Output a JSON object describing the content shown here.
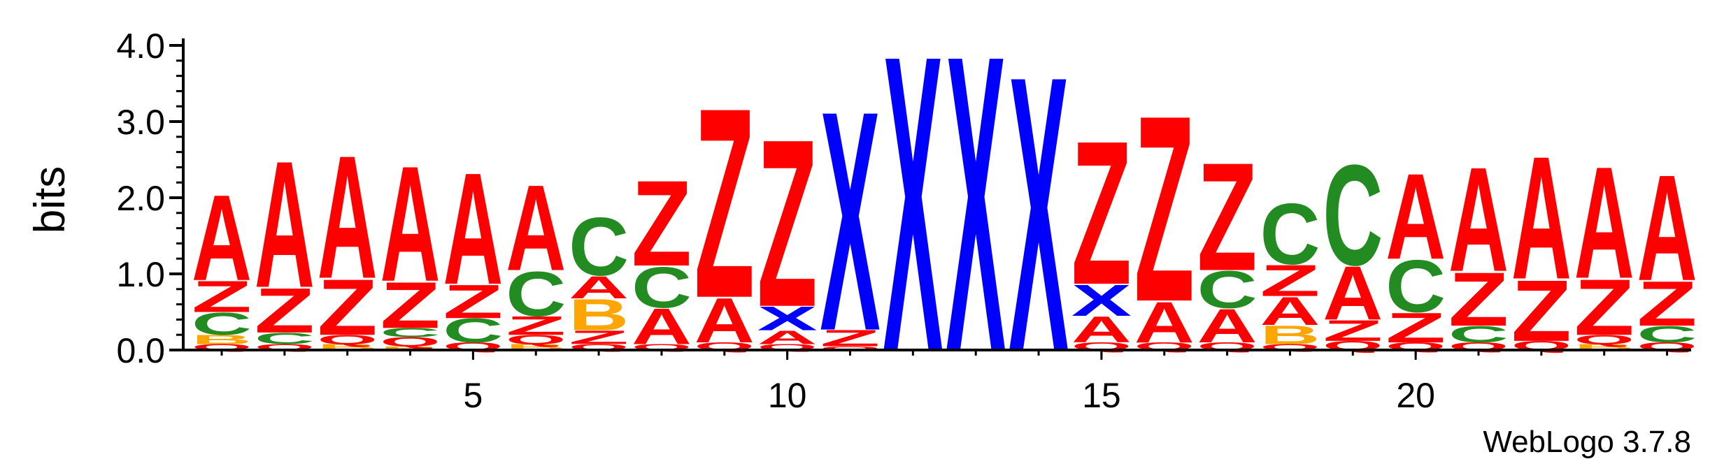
{
  "chart_data": {
    "type": "sequence-logo",
    "ylabel": "bits",
    "ylim": [
      0,
      4.0
    ],
    "yticks": [
      {
        "value": 0.0,
        "label": "0.0"
      },
      {
        "value": 1.0,
        "label": "1.0"
      },
      {
        "value": 2.0,
        "label": "2.0"
      },
      {
        "value": 3.0,
        "label": "3.0"
      },
      {
        "value": 4.0,
        "label": "4.0"
      }
    ],
    "x_tick_labels": [
      {
        "position": 5,
        "label": "5"
      },
      {
        "position": 10,
        "label": "10"
      },
      {
        "position": 15,
        "label": "15"
      },
      {
        "position": 20,
        "label": "20"
      }
    ],
    "positions": 24,
    "colors": {
      "A": "#ff0000",
      "Z": "#ff0000",
      "Q": "#ff0000",
      "C": "#228b22",
      "B": "#ffa500",
      "X": "#0000ff"
    },
    "stacks": [
      {
        "position": 1,
        "letters": [
          [
            "Q",
            0.08
          ],
          [
            "B",
            0.12
          ],
          [
            "C",
            0.3
          ],
          [
            "Z",
            0.42
          ],
          [
            "A",
            1.15
          ]
        ]
      },
      {
        "position": 2,
        "letters": [
          [
            "Q",
            0.08
          ],
          [
            "C",
            0.15
          ],
          [
            "Z",
            0.6
          ],
          [
            "A",
            1.7
          ]
        ]
      },
      {
        "position": 3,
        "letters": [
          [
            "B",
            0.08
          ],
          [
            "Q",
            0.12
          ],
          [
            "Z",
            0.75
          ],
          [
            "A",
            1.65
          ]
        ]
      },
      {
        "position": 4,
        "letters": [
          [
            "B",
            0.05
          ],
          [
            "Q",
            0.12
          ],
          [
            "C",
            0.12
          ],
          [
            "Z",
            0.62
          ],
          [
            "A",
            1.55
          ]
        ]
      },
      {
        "position": 5,
        "letters": [
          [
            "Q",
            0.1
          ],
          [
            "C",
            0.32
          ],
          [
            "Z",
            0.45
          ],
          [
            "A",
            1.5
          ]
        ]
      },
      {
        "position": 6,
        "letters": [
          [
            "B",
            0.08
          ],
          [
            "Q",
            0.12
          ],
          [
            "Z",
            0.25
          ],
          [
            "C",
            0.6
          ],
          [
            "A",
            1.15
          ]
        ]
      },
      {
        "position": 7,
        "letters": [
          [
            "Q",
            0.08
          ],
          [
            "Z",
            0.18
          ],
          [
            "B",
            0.42
          ],
          [
            "A",
            0.3
          ],
          [
            "C",
            0.78
          ]
        ]
      },
      {
        "position": 8,
        "letters": [
          [
            "Q",
            0.08
          ],
          [
            "A",
            0.48
          ],
          [
            "C",
            0.55
          ],
          [
            "Z",
            1.15
          ]
        ]
      },
      {
        "position": 9,
        "letters": [
          [
            "Q",
            0.1
          ],
          [
            "A",
            0.6
          ],
          [
            "Z",
            2.55
          ]
        ]
      },
      {
        "position": 10,
        "letters": [
          [
            "Q",
            0.08
          ],
          [
            "A",
            0.18
          ],
          [
            "X",
            0.32
          ],
          [
            "Z",
            2.25
          ]
        ]
      },
      {
        "position": 11,
        "letters": [
          [
            "Q",
            0.05
          ],
          [
            "Z",
            0.22
          ],
          [
            "X",
            2.95
          ]
        ]
      },
      {
        "position": 12,
        "letters": [
          [
            "X",
            3.98
          ]
        ]
      },
      {
        "position": 13,
        "letters": [
          [
            "X",
            3.98
          ]
        ]
      },
      {
        "position": 14,
        "letters": [
          [
            "X",
            3.7
          ]
        ]
      },
      {
        "position": 15,
        "letters": [
          [
            "Q",
            0.1
          ],
          [
            "A",
            0.35
          ],
          [
            "X",
            0.42
          ],
          [
            "Z",
            1.93
          ]
        ]
      },
      {
        "position": 16,
        "letters": [
          [
            "Q",
            0.1
          ],
          [
            "A",
            0.55
          ],
          [
            "Z",
            2.5
          ]
        ]
      },
      {
        "position": 17,
        "letters": [
          [
            "Q",
            0.1
          ],
          [
            "A",
            0.45
          ],
          [
            "C",
            0.5
          ],
          [
            "Z",
            1.45
          ]
        ]
      },
      {
        "position": 18,
        "letters": [
          [
            "Q",
            0.08
          ],
          [
            "B",
            0.25
          ],
          [
            "A",
            0.38
          ],
          [
            "Z",
            0.42
          ],
          [
            "C",
            0.82
          ]
        ]
      },
      {
        "position": 19,
        "letters": [
          [
            "Q",
            0.12
          ],
          [
            "Z",
            0.28
          ],
          [
            "A",
            0.72
          ],
          [
            "C",
            1.35
          ]
        ]
      },
      {
        "position": 20,
        "letters": [
          [
            "Q",
            0.1
          ],
          [
            "Z",
            0.4
          ],
          [
            "C",
            0.7
          ],
          [
            "A",
            1.15
          ]
        ]
      },
      {
        "position": 21,
        "letters": [
          [
            "Q",
            0.1
          ],
          [
            "C",
            0.22
          ],
          [
            "Z",
            0.72
          ],
          [
            "A",
            1.4
          ]
        ]
      },
      {
        "position": 22,
        "letters": [
          [
            "Q",
            0.12
          ],
          [
            "Z",
            0.82
          ],
          [
            "A",
            1.65
          ]
        ]
      },
      {
        "position": 23,
        "letters": [
          [
            "B",
            0.08
          ],
          [
            "Q",
            0.12
          ],
          [
            "Z",
            0.75
          ],
          [
            "A",
            1.5
          ]
        ]
      },
      {
        "position": 24,
        "letters": [
          [
            "Q",
            0.1
          ],
          [
            "C",
            0.22
          ],
          [
            "Z",
            0.6
          ],
          [
            "A",
            1.42
          ]
        ]
      }
    ],
    "credit": "WebLogo 3.7.8"
  }
}
